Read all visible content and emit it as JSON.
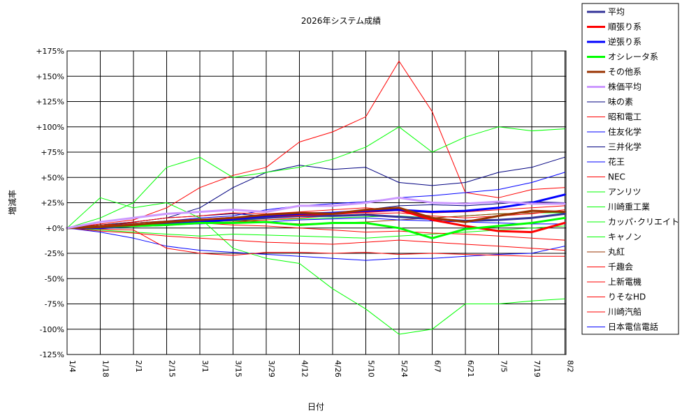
{
  "chart_data": {
    "type": "line",
    "title": "2026年システム成績",
    "xlabel": "日付",
    "ylabel": "増減率",
    "ylim": [
      -125,
      175
    ],
    "y_ticks": [
      175,
      150,
      125,
      100,
      75,
      50,
      25,
      0,
      -25,
      -50,
      -75,
      -100,
      -125
    ],
    "y_tick_labels": [
      "+175%",
      "+150%",
      "+125%",
      "+100%",
      "+75%",
      "+50%",
      "+25%",
      "+0%",
      "-25%",
      "-50%",
      "-75%",
      "-100%",
      "-125%"
    ],
    "x_ticks": [
      "1/4",
      "1/18",
      "2/1",
      "2/15",
      "3/1",
      "3/15",
      "3/29",
      "4/12",
      "4/26",
      "5/10",
      "5/24",
      "6/7",
      "6/21",
      "7/5",
      "7/19",
      "8/2"
    ],
    "grid": true,
    "legend_position": "right",
    "series": [
      {
        "name": "平均",
        "color": "#333399",
        "width": 3,
        "values": [
          0,
          1,
          2,
          4,
          6,
          8,
          10,
          12,
          12,
          13,
          11,
          9,
          7,
          8,
          10,
          14
        ]
      },
      {
        "name": "順張り系",
        "color": "#ff0000",
        "width": 3,
        "values": [
          0,
          1,
          3,
          6,
          8,
          10,
          12,
          13,
          14,
          16,
          18,
          8,
          2,
          -3,
          -4,
          5
        ]
      },
      {
        "name": "逆張り系",
        "color": "#0000ff",
        "width": 3,
        "values": [
          0,
          0,
          2,
          3,
          6,
          9,
          12,
          14,
          15,
          17,
          18,
          16,
          17,
          20,
          25,
          33
        ]
      },
      {
        "name": "オシレータ系",
        "color": "#00ff00",
        "width": 3,
        "values": [
          0,
          1,
          2,
          3,
          5,
          5,
          6,
          3,
          5,
          5,
          0,
          -10,
          -1,
          2,
          5,
          10
        ]
      },
      {
        "name": "その他系",
        "color": "#993300",
        "width": 3,
        "values": [
          0,
          1,
          3,
          6,
          8,
          10,
          13,
          15,
          14,
          18,
          20,
          10,
          6,
          12,
          17,
          16
        ]
      },
      {
        "name": "株価平均",
        "color": "#cc99ff",
        "width": 3,
        "values": [
          0,
          6,
          10,
          14,
          16,
          18,
          16,
          22,
          22,
          25,
          30,
          25,
          24,
          26,
          24,
          24
        ]
      },
      {
        "name": "味の素",
        "color": "#000080",
        "width": 1,
        "values": [
          0,
          3,
          6,
          10,
          12,
          14,
          12,
          15,
          15,
          18,
          22,
          23,
          22,
          24,
          26,
          25
        ]
      },
      {
        "name": "昭和電工",
        "color": "#ff0000",
        "width": 1,
        "values": [
          0,
          4,
          8,
          20,
          40,
          52,
          60,
          85,
          95,
          110,
          165,
          115,
          35,
          30,
          38,
          40
        ]
      },
      {
        "name": "住友化学",
        "color": "#0000ff",
        "width": 1,
        "values": [
          0,
          2,
          5,
          7,
          10,
          12,
          18,
          22,
          24,
          26,
          30,
          32,
          35,
          38,
          45,
          55
        ]
      },
      {
        "name": "三井化学",
        "color": "#000080",
        "width": 1,
        "values": [
          0,
          3,
          6,
          10,
          20,
          40,
          55,
          62,
          58,
          60,
          45,
          42,
          45,
          55,
          60,
          70
        ]
      },
      {
        "name": "花王",
        "color": "#0000ff",
        "width": 1,
        "values": [
          0,
          -4,
          -10,
          -18,
          -22,
          -24,
          -26,
          -28,
          -30,
          -32,
          -30,
          -30,
          -28,
          -26,
          -25,
          -18
        ]
      },
      {
        "name": "NEC",
        "color": "#ff0000",
        "width": 1,
        "values": [
          0,
          2,
          6,
          10,
          12,
          15,
          14,
          16,
          18,
          20,
          17,
          15,
          16,
          18,
          20,
          22
        ]
      },
      {
        "name": "アンリツ",
        "color": "#00ff00",
        "width": 1,
        "values": [
          0,
          10,
          25,
          60,
          70,
          50,
          55,
          60,
          68,
          80,
          100,
          75,
          90,
          100,
          96,
          98
        ]
      },
      {
        "name": "川崎重工業",
        "color": "#00ff00",
        "width": 1,
        "values": [
          0,
          30,
          20,
          25,
          10,
          -20,
          -30,
          -35,
          -60,
          -80,
          -105,
          -100,
          -75,
          -75,
          -72,
          -70
        ]
      },
      {
        "name": "カッパ･クリエイト",
        "color": "#00ff00",
        "width": 1,
        "values": [
          0,
          2,
          4,
          5,
          6,
          7,
          8,
          9,
          10,
          11,
          12,
          10,
          12,
          14,
          15,
          15
        ]
      },
      {
        "name": "キャノン",
        "color": "#00ff00",
        "width": 1,
        "values": [
          0,
          -2,
          -4,
          -6,
          -8,
          -6,
          -7,
          -8,
          -9,
          -10,
          -8,
          -6,
          -4,
          -2,
          0,
          2
        ]
      },
      {
        "name": "丸紅",
        "color": "#993300",
        "width": 1,
        "values": [
          0,
          3,
          5,
          7,
          9,
          8,
          6,
          4,
          5,
          6,
          8,
          10,
          12,
          14,
          15,
          16
        ]
      },
      {
        "name": "千趣会",
        "color": "#ff0000",
        "width": 1,
        "values": [
          0,
          2,
          3,
          4,
          5,
          6,
          8,
          10,
          12,
          14,
          15,
          12,
          10,
          12,
          14,
          18
        ]
      },
      {
        "name": "上新電機",
        "color": "#ff0000",
        "width": 1,
        "values": [
          0,
          -3,
          -5,
          -8,
          -10,
          -12,
          -14,
          -15,
          -16,
          -14,
          -12,
          -14,
          -16,
          -18,
          -20,
          -22
        ]
      },
      {
        "name": "りそなHD",
        "color": "#ff0000",
        "width": 1,
        "values": [
          0,
          -1,
          -2,
          -20,
          -25,
          -27,
          -24,
          -24,
          -25,
          -24,
          -26,
          -25,
          -26,
          -27,
          -28,
          -28
        ]
      },
      {
        "name": "川崎汽船",
        "color": "#ff0000",
        "width": 1,
        "values": [
          0,
          2,
          4,
          6,
          5,
          3,
          2,
          0,
          -2,
          -4,
          -3,
          -5,
          -6,
          -8,
          -10,
          -12
        ]
      },
      {
        "name": "日本電信電話",
        "color": "#0000ff",
        "width": 1,
        "values": [
          0,
          1,
          2,
          3,
          4,
          5,
          6,
          8,
          9,
          10,
          8,
          7,
          6,
          5,
          4,
          4
        ]
      }
    ]
  }
}
